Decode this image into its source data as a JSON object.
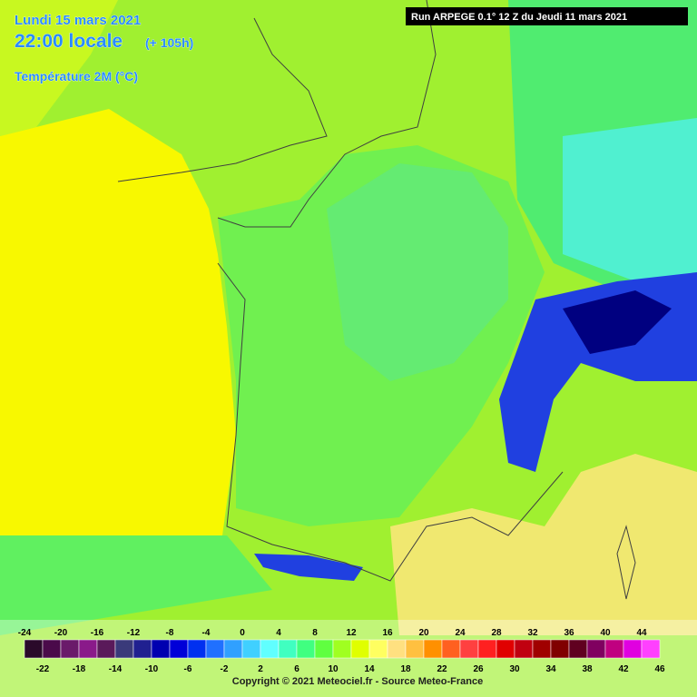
{
  "header": {
    "date": "Lundi 15 mars 2021",
    "time": "22:00 locale",
    "lead": "(+ 105h)",
    "variable": "Température 2M (°C)"
  },
  "run": "Run ARPEGE 0.1° 12 Z du Jeudi 11 mars 2021",
  "legend": {
    "labels": [
      -24,
      -22,
      -20,
      -18,
      -16,
      -14,
      -12,
      -10,
      -8,
      -6,
      -4,
      -2,
      0,
      2,
      4,
      6,
      8,
      10,
      12,
      14,
      16,
      18,
      20,
      22,
      24,
      26,
      28,
      30,
      32,
      34,
      36,
      38,
      40,
      42,
      44,
      46
    ],
    "colors": [
      "#2a0a2a",
      "#4a0a4a",
      "#6a1a6a",
      "#8a1a8a",
      "#5a1a5a",
      "#3a3a7a",
      "#202090",
      "#0000b0",
      "#0000d8",
      "#0030f0",
      "#2070ff",
      "#30a0ff",
      "#40d0ff",
      "#60ffff",
      "#40ffc0",
      "#40ff80",
      "#60ff40",
      "#a0ff20",
      "#e0ff00",
      "#ffff60",
      "#ffe080",
      "#ffc040",
      "#ff9000",
      "#ff6020",
      "#ff4040",
      "#ff2020",
      "#e00000",
      "#c00010",
      "#a00000",
      "#800000",
      "#600020",
      "#800060",
      "#c00080",
      "#e000e0",
      "#ff40ff"
    ]
  },
  "copyright": "Copyright © 2021 Meteociel.fr - Source Meteo-France"
}
